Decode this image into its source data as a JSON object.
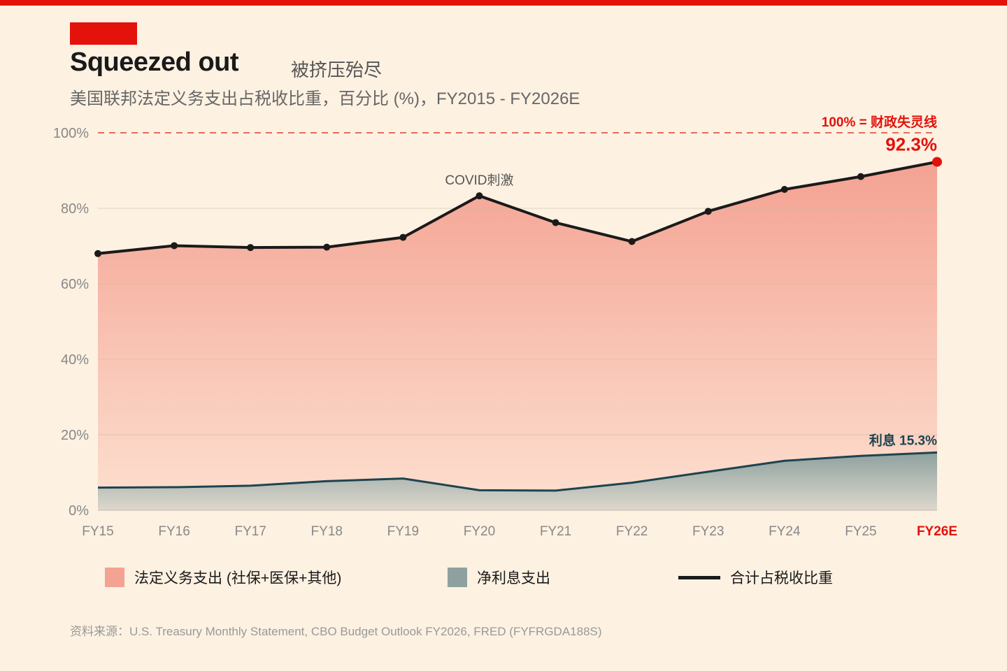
{
  "header": {
    "title": "Squeezed out",
    "title_cn": "被挤压殆尽",
    "subtitle": "美国联邦法定义务支出占税收比重，百分比 (%)，FY2015 - FY2026E"
  },
  "colors": {
    "brand_red": "#e3120b",
    "mandatory_fill_top": "#f4a292",
    "mandatory_fill_bottom": "#fde0d0",
    "interest_line": "#1e4350",
    "interest_fill_top": "#8ea19f",
    "total_line": "#1a1a1a",
    "threshold_line": "#e86a5e"
  },
  "chart_data": {
    "type": "area",
    "categories": [
      "FY15",
      "FY16",
      "FY17",
      "FY18",
      "FY19",
      "FY20",
      "FY21",
      "FY22",
      "FY23",
      "FY24",
      "FY25",
      "FY26E"
    ],
    "series": [
      {
        "name": "合计占税收比重",
        "kind": "line",
        "values": [
          68.0,
          70.1,
          69.6,
          69.7,
          72.3,
          83.3,
          76.2,
          71.2,
          79.2,
          85.0,
          88.4,
          92.3
        ]
      },
      {
        "name": "净利息支出",
        "kind": "area",
        "values": [
          6.0,
          6.1,
          6.5,
          7.7,
          8.4,
          5.3,
          5.2,
          7.3,
          10.2,
          13.1,
          14.4,
          15.3
        ]
      }
    ],
    "yticks": [
      "0%",
      "20%",
      "40%",
      "60%",
      "80%",
      "100%"
    ],
    "ylim": [
      0,
      100
    ],
    "threshold": {
      "value": 100,
      "label": "100% = 财政失灵线"
    },
    "annotations": {
      "covid": "COVID刺激",
      "end_total": "92.3%",
      "end_interest": "利息 15.3%"
    },
    "highlight_category": "FY26E",
    "grid": true
  },
  "legend": [
    {
      "label": "法定义务支出 (社保+医保+其他)",
      "swatch": "#f4a292"
    },
    {
      "label": "净利息支出",
      "swatch": "#8ea19f"
    },
    {
      "label": "合计占税收比重",
      "swatch": "#1a1a1a"
    }
  ],
  "source": "资料来源：U.S. Treasury Monthly Statement, CBO Budget Outlook FY2026, FRED (FYFRGDA188S)"
}
